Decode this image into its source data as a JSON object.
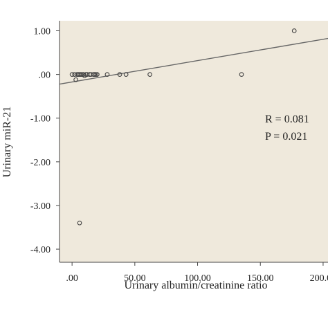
{
  "chart_data": {
    "type": "scatter",
    "xlabel": "Urinary albumin/creatinine ratio",
    "ylabel": "Urinary miR-21",
    "xlim": [
      -10,
      205
    ],
    "ylim": [
      -4.3,
      1.23
    ],
    "xticks": [
      0,
      50,
      100,
      150,
      200
    ],
    "xtick_labels": [
      ".00",
      "50.00",
      "100.00",
      "150.00",
      "200.00"
    ],
    "yticks": [
      1,
      0,
      -1,
      -2,
      -3,
      -4
    ],
    "ytick_labels": [
      "1.00",
      ".00",
      "-1.00",
      "-2.00",
      "-3.00",
      "-4.00"
    ],
    "grid": false,
    "plot_background": "#efe9dc",
    "point_color": "#444444",
    "line_color": "#666666",
    "points": [
      {
        "x": 0,
        "y": 0
      },
      {
        "x": 2,
        "y": 0
      },
      {
        "x": 3,
        "y": -0.12
      },
      {
        "x": 4,
        "y": 0
      },
      {
        "x": 5,
        "y": 0
      },
      {
        "x": 6,
        "y": 0
      },
      {
        "x": 7,
        "y": 0
      },
      {
        "x": 8,
        "y": 0
      },
      {
        "x": 9,
        "y": 0
      },
      {
        "x": 10,
        "y": -0.03
      },
      {
        "x": 11,
        "y": 0
      },
      {
        "x": 12,
        "y": 0
      },
      {
        "x": 14,
        "y": 0
      },
      {
        "x": 15,
        "y": 0
      },
      {
        "x": 17,
        "y": 0
      },
      {
        "x": 18,
        "y": 0
      },
      {
        "x": 19,
        "y": 0
      },
      {
        "x": 20,
        "y": 0
      },
      {
        "x": 28,
        "y": 0
      },
      {
        "x": 38,
        "y": 0
      },
      {
        "x": 43,
        "y": 0
      },
      {
        "x": 62,
        "y": 0
      },
      {
        "x": 135,
        "y": 0
      },
      {
        "x": 177,
        "y": 1.0
      },
      {
        "x": 6,
        "y": -3.4
      }
    ],
    "fit_line": {
      "x": [
        -10,
        205
      ],
      "y": [
        -0.22,
        0.83
      ]
    },
    "annotations": [
      "R = 0.081",
      "P = 0.021"
    ]
  }
}
